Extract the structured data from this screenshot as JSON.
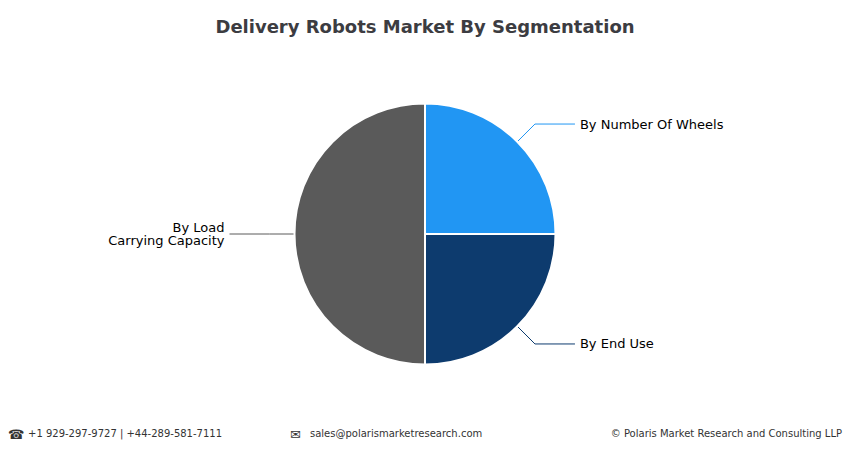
{
  "chart_data": {
    "type": "pie",
    "title": "Delivery Robots Market By Segmentation",
    "categories": [
      "By Number Of Wheels",
      "By End Use",
      "By Load\nCarrying Capacity"
    ],
    "values": [
      25,
      25,
      50
    ],
    "colors": [
      "#2196F3",
      "#0D3B6E",
      "#5A5A5A"
    ],
    "annotations": [
      "☎",
      "+1 929-297-9727 | +44-289-581-7111",
      "✉",
      "sales@polarismarketresearch.com",
      "© Polaris Market Research and Consulting LLP"
    ]
  }
}
